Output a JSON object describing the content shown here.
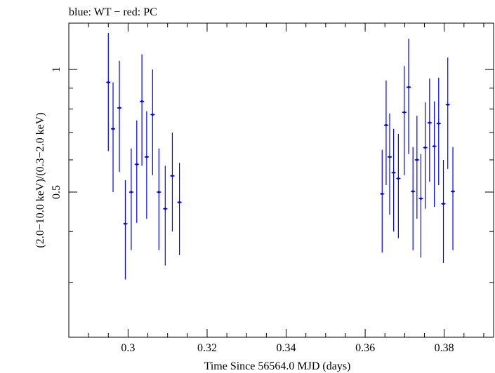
{
  "chart_data": {
    "type": "scatter",
    "title": "blue: WT − red: PC",
    "xlabel": "Time Since 56564.0 MJD (days)",
    "ylabel": "(2.0−10.0 keV)/(0.3−2.0 keV)",
    "xlim": [
      0.285,
      0.3925
    ],
    "ylim": [
      0.22,
      1.3
    ],
    "ylog": true,
    "x_ticks": [
      {
        "value": 0.3,
        "label": "0.3"
      },
      {
        "value": 0.32,
        "label": "0.32"
      },
      {
        "value": 0.34,
        "label": "0.34"
      },
      {
        "value": 0.36,
        "label": "0.36"
      },
      {
        "value": 0.38,
        "label": "0.38"
      }
    ],
    "y_ticks": [
      {
        "value": 0.5,
        "label": "0.5"
      },
      {
        "value": 1,
        "label": "1"
      }
    ],
    "color": "#0000ee",
    "series": [
      {
        "points": [
          {
            "x": 0.295,
            "y": 0.93,
            "lo": 0.63,
            "hi": 1.23
          },
          {
            "x": 0.2962,
            "y": 0.715,
            "lo": 0.5,
            "hi": 0.93
          },
          {
            "x": 0.2978,
            "y": 0.805,
            "lo": 0.56,
            "hi": 1.05
          },
          {
            "x": 0.2993,
            "y": 0.418,
            "lo": 0.305,
            "hi": 0.535
          },
          {
            "x": 0.3008,
            "y": 0.5,
            "lo": 0.36,
            "hi": 0.64
          },
          {
            "x": 0.3022,
            "y": 0.585,
            "lo": 0.42,
            "hi": 0.75
          },
          {
            "x": 0.3035,
            "y": 0.835,
            "lo": 0.58,
            "hi": 1.09
          },
          {
            "x": 0.3047,
            "y": 0.61,
            "lo": 0.43,
            "hi": 0.79
          },
          {
            "x": 0.3062,
            "y": 0.775,
            "lo": 0.55,
            "hi": 1.0
          },
          {
            "x": 0.3078,
            "y": 0.5,
            "lo": 0.36,
            "hi": 0.64
          },
          {
            "x": 0.3094,
            "y": 0.455,
            "lo": 0.33,
            "hi": 0.58
          },
          {
            "x": 0.3112,
            "y": 0.548,
            "lo": 0.4,
            "hi": 0.7
          },
          {
            "x": 0.313,
            "y": 0.472,
            "lo": 0.35,
            "hi": 0.59
          },
          {
            "x": 0.3643,
            "y": 0.495,
            "lo": 0.355,
            "hi": 0.635
          },
          {
            "x": 0.3653,
            "y": 0.73,
            "lo": 0.52,
            "hi": 0.94
          },
          {
            "x": 0.3662,
            "y": 0.61,
            "lo": 0.44,
            "hi": 0.78
          },
          {
            "x": 0.3672,
            "y": 0.558,
            "lo": 0.4,
            "hi": 0.715
          },
          {
            "x": 0.3684,
            "y": 0.54,
            "lo": 0.385,
            "hi": 0.695
          },
          {
            "x": 0.3699,
            "y": 0.785,
            "lo": 0.55,
            "hi": 1.02
          },
          {
            "x": 0.371,
            "y": 0.905,
            "lo": 0.62,
            "hi": 1.19
          },
          {
            "x": 0.3721,
            "y": 0.502,
            "lo": 0.36,
            "hi": 0.645
          },
          {
            "x": 0.3731,
            "y": 0.6,
            "lo": 0.43,
            "hi": 0.77
          },
          {
            "x": 0.3741,
            "y": 0.482,
            "lo": 0.345,
            "hi": 0.62
          },
          {
            "x": 0.3752,
            "y": 0.643,
            "lo": 0.455,
            "hi": 0.83
          },
          {
            "x": 0.3763,
            "y": 0.74,
            "lo": 0.53,
            "hi": 0.95
          },
          {
            "x": 0.3775,
            "y": 0.648,
            "lo": 0.46,
            "hi": 0.835
          },
          {
            "x": 0.3786,
            "y": 0.737,
            "lo": 0.52,
            "hi": 0.955
          },
          {
            "x": 0.3798,
            "y": 0.468,
            "lo": 0.335,
            "hi": 0.6
          },
          {
            "x": 0.3809,
            "y": 0.82,
            "lo": 0.57,
            "hi": 1.07
          },
          {
            "x": 0.3822,
            "y": 0.502,
            "lo": 0.36,
            "hi": 0.645
          }
        ]
      }
    ]
  }
}
